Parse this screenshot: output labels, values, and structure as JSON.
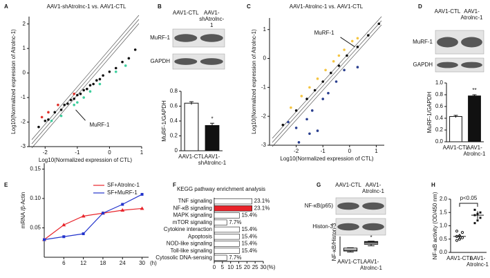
{
  "chart_data": [
    {
      "panel": "A",
      "type": "scatter",
      "title": "AAV1-shAtrolnc-1 vs. AAV1-CTL",
      "xlabel": "Log10(Normalized expression of CTL)",
      "ylabel": "Log10(Normalized expression of Atrolnc-1)",
      "xlim": [
        -2.5,
        1
      ],
      "xticks": [
        -2,
        -1,
        0,
        1
      ],
      "ylim": [
        -3,
        2.3
      ],
      "yticks": [
        -3,
        -2,
        -1,
        0,
        1,
        2
      ],
      "series": [
        {
          "color": "#111111",
          "x": [
            -2.2,
            -2.0,
            -1.9,
            -1.7,
            -1.5,
            -1.4,
            -1.3,
            -1.2,
            -1.1,
            -1.0,
            -0.9,
            -0.8,
            -0.7,
            -0.6,
            -0.5,
            -0.4,
            -0.3,
            -0.2,
            0,
            0.2,
            0.4,
            0.6,
            0.8
          ],
          "values": [
            -2.2,
            -1.95,
            -1.9,
            -1.6,
            -1.5,
            -1.3,
            -1.25,
            -1.1,
            -1.05,
            -0.9,
            -0.85,
            -0.7,
            -0.65,
            -0.5,
            -0.45,
            -0.3,
            -0.25,
            -0.1,
            0.05,
            0.2,
            0.45,
            0.6,
            0.95
          ]
        },
        {
          "color": "#3ecf9e",
          "x": [
            -1.8,
            -1.5,
            -1.1,
            -1.0,
            -0.8,
            -0.6,
            -0.3,
            0.2,
            0.5
          ],
          "values": [
            -1.95,
            -1.75,
            -1.3,
            -1.2,
            -1.0,
            -0.75,
            -0.45,
            0.05,
            0.3
          ]
        },
        {
          "color": "#e0302a",
          "x": [
            -2.1,
            -1.9,
            -1.6,
            -1.1
          ],
          "values": [
            -1.8,
            -1.6,
            -1.3,
            -0.85
          ]
        }
      ],
      "annotation": {
        "text": "MuRF-1",
        "x": -1.05,
        "y": -1.5
      }
    },
    {
      "panel": "B",
      "type": "bar",
      "categories": [
        "AAV1-CTL",
        "AAV1-shAtrolnc-1"
      ],
      "blot_labels": [
        "MuRF-1",
        "GAPDH"
      ],
      "ylabel": "MuRF-1/GAPDH",
      "values": [
        0.64,
        0.34
      ],
      "errors": [
        0.02,
        0.03
      ],
      "colors": [
        "#ffffff",
        "#111111"
      ],
      "annotation": "*",
      "ylim": [
        0,
        0.8
      ],
      "yticks": [
        0,
        0.2,
        0.4,
        0.6,
        0.8
      ]
    },
    {
      "panel": "C",
      "type": "scatter",
      "title": "AAV1-Atrolnc-1 vs. AAV1-CTL",
      "xlabel": "Log10(Normalized expression of CTL)",
      "ylabel": "Log10(Normalized expression of Atrolnc-1)",
      "xlim": [
        -3,
        1.3
      ],
      "xticks": [
        -2,
        -1,
        0,
        1
      ],
      "ylim": [
        -3,
        1.4
      ],
      "yticks": [
        -3,
        -2,
        -1,
        0,
        1
      ],
      "series": [
        {
          "color": "#111111",
          "x": [
            -2.5,
            -2,
            -1.6,
            -1.3,
            -1,
            -0.7,
            -0.4,
            -0.1,
            0.3,
            0.7,
            1.1
          ],
          "values": [
            -2.3,
            -1.8,
            -1.4,
            -1.1,
            -0.8,
            -0.5,
            -0.25,
            0.1,
            0.4,
            0.8,
            1.2
          ]
        },
        {
          "color": "#f5c542",
          "x": [
            -2.2,
            -1.8,
            -1.5,
            -1.2,
            -0.9,
            -0.6,
            -0.4,
            -0.2,
            0.1,
            0.3
          ],
          "values": [
            -1.7,
            -1.3,
            -1.0,
            -0.7,
            -0.4,
            -0.1,
            0.1,
            0.3,
            0.6,
            0.7
          ]
        },
        {
          "color": "#2a3f8f",
          "x": [
            -2.3,
            -2.0,
            -1.9,
            -1.6,
            -1.4,
            -1.2,
            -1.0,
            -0.8,
            -0.5,
            -0.2,
            0.3,
            -1.5
          ],
          "values": [
            -2.2,
            -2.4,
            -2.9,
            -2.1,
            -1.8,
            -2.5,
            -1.4,
            -1.2,
            -0.8,
            -0.4,
            -0.3,
            -2.6
          ]
        }
      ],
      "annotation": {
        "text": "MuRF-1",
        "x": 0.2,
        "y": 0.4
      }
    },
    {
      "panel": "D",
      "type": "bar",
      "categories": [
        "AAV1-CTL",
        "AAV1-Atrolnc-1"
      ],
      "blot_labels": [
        "MuRF-1",
        "GAPDH"
      ],
      "ylabel": "MuRF-1/GAPDH",
      "values": [
        0.43,
        0.78
      ],
      "errors": [
        0.02,
        0.02
      ],
      "colors": [
        "#ffffff",
        "#111111"
      ],
      "annotation": "**",
      "ylim": [
        0,
        1.0
      ],
      "yticks": [
        {
          "value": 0,
          "label": "0.0"
        },
        {
          "value": 0.2,
          "label": "0.2"
        },
        {
          "value": 0.4,
          "label": "0.4"
        },
        {
          "value": 0.6,
          "label": "0.6"
        },
        {
          "value": 0.8,
          "label": "0.8"
        },
        {
          "value": 1.0,
          "label": "1.0"
        }
      ]
    },
    {
      "panel": "E",
      "type": "line",
      "ylabel": "mRNA /β-Actin",
      "xlabel": "(h)",
      "legend": "top-right",
      "x": [
        0,
        6,
        12,
        18,
        24,
        30
      ],
      "xlim": [
        0,
        32
      ],
      "xticks": [
        6,
        12,
        18,
        24,
        30
      ],
      "ylim": [
        0,
        0.16
      ],
      "yticks": [
        0.05,
        {
          "value": 0.1,
          "label": "0.10"
        },
        0.15
      ],
      "series": [
        {
          "name": "SF+Atrolnc-1",
          "color": "#e8232a",
          "marker": "triangle",
          "values": [
            0.03,
            0.055,
            0.07,
            0.075,
            0.08,
            0.083
          ]
        },
        {
          "name": "SF+MuRF-1",
          "color": "#2233cc",
          "marker": "square",
          "values": [
            0.03,
            0.035,
            0.04,
            0.075,
            0.09,
            0.107
          ]
        }
      ]
    },
    {
      "panel": "F",
      "type": "hbar",
      "title": "KEGG pathway enrichment analysis",
      "xlabel": "(%)",
      "categories": [
        "TNF signaling",
        "NF-κB signaling",
        "MAPK signaling",
        "mTOR signaling",
        "Cytokine interaction",
        "Apoptosis",
        "NOD-like signaling",
        "Toll-like signaling",
        "Cytosolic DNA-sensing"
      ],
      "values": [
        23.1,
        23.1,
        15.4,
        7.7,
        15.4,
        15.4,
        15.4,
        15.4,
        7.7
      ],
      "value_labels": [
        "23.1%",
        "23.1%",
        "15.4%",
        "7.7%",
        "15.4%",
        "15.4%",
        "15.4%",
        "15.4%",
        "7.7%"
      ],
      "colors": [
        "#ffffff",
        "#e8232a",
        "#ffffff",
        "#ffffff",
        "#ffffff",
        "#ffffff",
        "#ffffff",
        "#ffffff",
        "#ffffff"
      ],
      "xlim": [
        0,
        30
      ],
      "xticks": [
        0,
        5,
        10,
        15,
        20,
        25,
        30
      ]
    },
    {
      "panel": "G",
      "type": "box",
      "categories": [
        "AAV1-CTL",
        "AAV1-Atrolnc-1"
      ],
      "blot_labels": [
        "NF-κB(p65)",
        "Histon-3"
      ],
      "ylabel": "NF-κB/Histon-3",
      "boxes": [
        [
          0.2,
          0.25,
          0.3,
          0.4,
          0.42
        ],
        [
          0.52,
          0.6,
          0.65,
          0.74,
          0.76
        ]
      ],
      "colors": [
        "#ffffff",
        "#111111"
      ],
      "annotation": "*",
      "ylim": [
        0,
        1
      ]
    },
    {
      "panel": "H",
      "type": "dot",
      "categories": [
        "AAV1-CTL",
        "AAV1-Atrolnc-1"
      ],
      "ylabel": "NF-κB activity (OD/450 nm)",
      "annotation": "p<0.05",
      "points": [
        [
          0.45,
          0.5,
          0.55,
          0.6,
          0.62,
          0.75,
          0.8
        ],
        [
          1.1,
          1.2,
          1.3,
          1.4,
          1.45,
          1.5,
          1.6
        ]
      ],
      "means": [
        0.6,
        1.4
      ],
      "errors": [
        0.1,
        0.15
      ],
      "ylim": [
        0,
        2.0
      ],
      "yticks": [
        {
          "value": 0,
          "label": "0.0"
        },
        {
          "value": 0.5,
          "label": "0.5"
        },
        {
          "value": 1.0,
          "label": "1.0"
        },
        {
          "value": 1.5,
          "label": "1.5"
        },
        {
          "value": 2.0,
          "label": "2.0"
        }
      ]
    }
  ]
}
